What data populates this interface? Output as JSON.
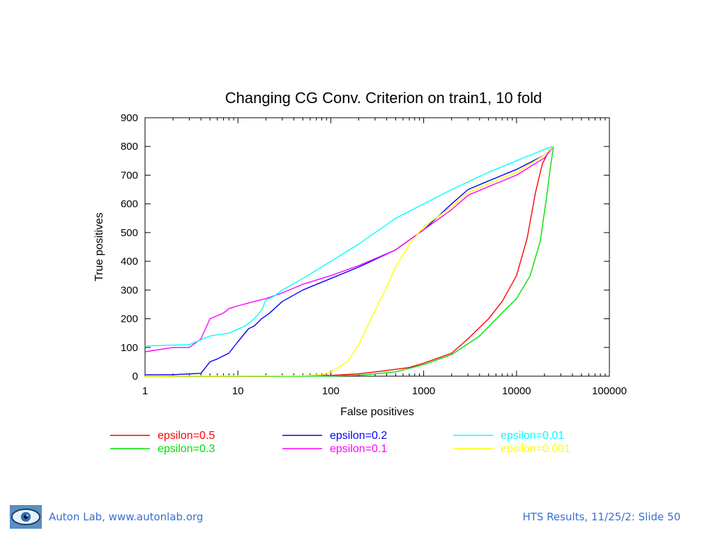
{
  "footer": {
    "left_text": "Auton Lab, www.autonlab.org",
    "right_text": "HTS Results, 11/25/2: Slide 50",
    "logo_icon": "eye-logo-icon",
    "text_color": "#3a6fd0"
  },
  "chart_data": {
    "type": "line",
    "title": "Changing CG Conv. Criterion on train1, 10 fold",
    "xlabel": "False positives",
    "ylabel": "True positives",
    "xscale": "log",
    "xlim": [
      1,
      100000
    ],
    "ylim": [
      0,
      900
    ],
    "xticks": [
      1,
      10,
      100,
      1000,
      10000,
      100000
    ],
    "xtick_labels": [
      "1",
      "10",
      "100",
      "1000",
      "10000",
      "100000"
    ],
    "yticks": [
      0,
      100,
      200,
      300,
      400,
      500,
      600,
      700,
      800,
      900
    ],
    "ytick_labels": [
      "0",
      "100",
      "200",
      "300",
      "400",
      "500",
      "600",
      "700",
      "800",
      "900"
    ],
    "grid": false,
    "legend_position": "bottom",
    "series": [
      {
        "name": "epsilon=0.5",
        "color": "#ff0000",
        "x": [
          1,
          20,
          50,
          100,
          200,
          400,
          700,
          1000,
          2000,
          3000,
          5000,
          7000,
          10000,
          13000,
          16000,
          19000,
          22000,
          25000
        ],
        "y": [
          0,
          0,
          1,
          3,
          8,
          20,
          30,
          45,
          80,
          130,
          200,
          260,
          350,
          480,
          640,
          740,
          780,
          800
        ]
      },
      {
        "name": "epsilon=0.3",
        "color": "#00dd00",
        "x": [
          1,
          50,
          100,
          200,
          500,
          1000,
          2000,
          4000,
          7000,
          10000,
          14000,
          18000,
          21000,
          23000,
          25000
        ],
        "y": [
          0,
          0,
          1,
          3,
          15,
          40,
          75,
          140,
          220,
          270,
          350,
          470,
          620,
          720,
          800
        ]
      },
      {
        "name": "epsilon=0.2",
        "color": "#0000ff",
        "x": [
          1,
          2,
          4,
          5,
          6,
          8,
          10,
          13,
          15,
          18,
          22,
          30,
          50,
          100,
          200,
          500,
          1000,
          2000,
          3000,
          5000,
          10000,
          20000,
          25000
        ],
        "y": [
          5,
          5,
          10,
          50,
          60,
          80,
          120,
          165,
          175,
          200,
          220,
          260,
          300,
          340,
          380,
          440,
          510,
          600,
          650,
          680,
          720,
          770,
          800
        ]
      },
      {
        "name": "epsilon=0.1",
        "color": "#ff00ff",
        "x": [
          1,
          2,
          3,
          4,
          5,
          7,
          8,
          10,
          15,
          20,
          30,
          50,
          100,
          200,
          500,
          1000,
          2000,
          3000,
          5000,
          10000,
          20000,
          25000
        ],
        "y": [
          85,
          100,
          100,
          130,
          200,
          220,
          235,
          245,
          260,
          270,
          290,
          320,
          350,
          385,
          440,
          510,
          580,
          630,
          660,
          700,
          760,
          800
        ]
      },
      {
        "name": "epsilon=0.01",
        "color": "#00ffff",
        "x": [
          1,
          3,
          5,
          8,
          12,
          15,
          18,
          20,
          25,
          30,
          50,
          100,
          200,
          500,
          1000,
          2000,
          5000,
          10000,
          20000,
          25000
        ],
        "y": [
          105,
          110,
          140,
          150,
          175,
          200,
          230,
          265,
          280,
          300,
          340,
          400,
          460,
          550,
          600,
          650,
          710,
          750,
          790,
          800
        ]
      },
      {
        "name": "epsilon=0.001",
        "color": "#ffff00",
        "x": [
          1,
          50,
          80,
          100,
          150,
          200,
          300,
          400,
          500,
          700,
          1000,
          2000,
          3000,
          5000,
          10000,
          20000,
          25000
        ],
        "y": [
          0,
          2,
          5,
          15,
          50,
          110,
          230,
          310,
          380,
          460,
          520,
          590,
          640,
          670,
          710,
          770,
          800
        ]
      }
    ]
  }
}
